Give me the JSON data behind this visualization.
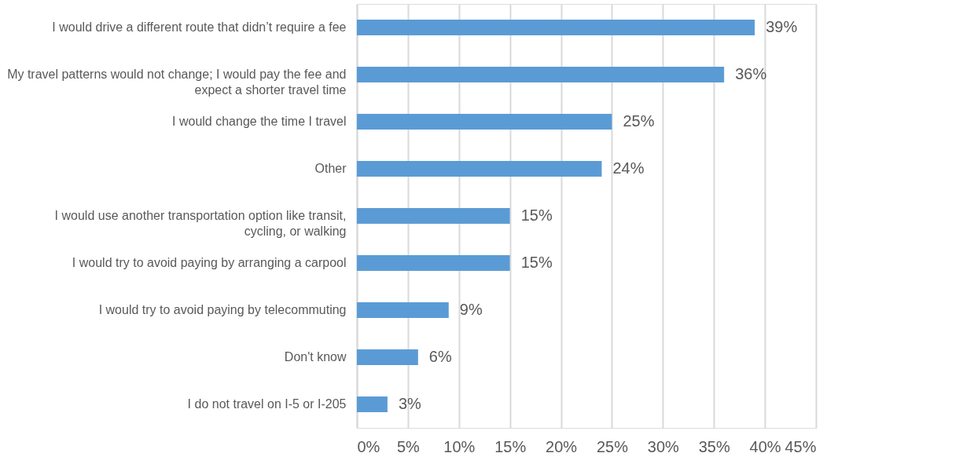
{
  "chart_data": {
    "type": "bar",
    "orientation": "horizontal",
    "categories": [
      "I would drive a different route that didn’t require a fee",
      "My travel patterns would not change; I would pay the fee and expect a shorter travel time",
      "I would change the time I travel",
      "Other",
      "I would use another transportation option like transit, cycling, or walking",
      "I would try to avoid paying by arranging a carpool",
      "I would try to avoid paying by telecommuting",
      "Don't know",
      "I do not travel on I-5 or I-205"
    ],
    "values": [
      39,
      36,
      25,
      24,
      15,
      15,
      9,
      6,
      3
    ],
    "value_labels": [
      "39%",
      "36%",
      "25%",
      "24%",
      "15%",
      "15%",
      "9%",
      "6%",
      "3%"
    ],
    "color": "#5b9bd5",
    "xlim": [
      0,
      45
    ],
    "xticks": [
      {
        "value": 0,
        "label": "0%"
      },
      {
        "value": 5,
        "label": "5%"
      },
      {
        "value": 10,
        "label": "10%"
      },
      {
        "value": 15,
        "label": "15%"
      },
      {
        "value": 20,
        "label": "20%"
      },
      {
        "value": 25,
        "label": "25%"
      },
      {
        "value": 30,
        "label": "30%"
      },
      {
        "value": 35,
        "label": "35%"
      },
      {
        "value": 40,
        "label": "40%"
      },
      {
        "value": 45,
        "label": "45%"
      }
    ],
    "grid": "x"
  }
}
